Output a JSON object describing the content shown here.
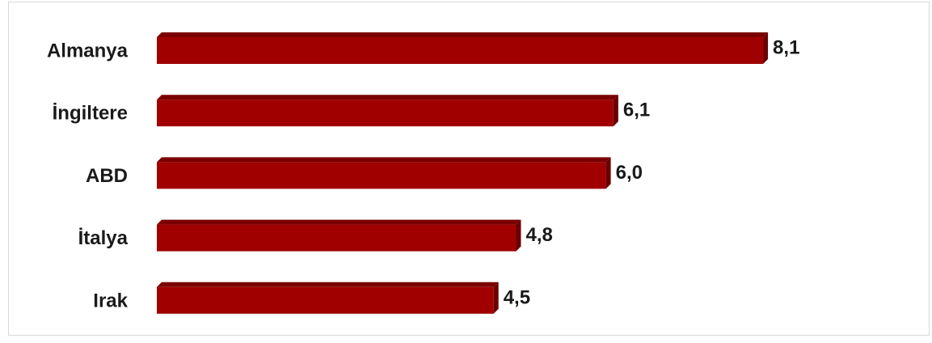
{
  "chart_data": {
    "type": "bar",
    "orientation": "horizontal",
    "style": "3d",
    "categories": [
      "Almanya",
      "İngiltere",
      "ABD",
      "İtalya",
      "Irak"
    ],
    "values": [
      8.1,
      6.1,
      6.0,
      4.8,
      4.5
    ],
    "value_labels": [
      "8,1",
      "6,1",
      "6,0",
      "4,8",
      "4,5"
    ],
    "title": "",
    "xlabel": "",
    "ylabel": "",
    "xlim": [
      0,
      9
    ],
    "grid": false,
    "legend": "none",
    "colors": {
      "bar_front": "#a00000",
      "bar_top": "#7a0000",
      "bar_side": "#6a0000"
    }
  }
}
